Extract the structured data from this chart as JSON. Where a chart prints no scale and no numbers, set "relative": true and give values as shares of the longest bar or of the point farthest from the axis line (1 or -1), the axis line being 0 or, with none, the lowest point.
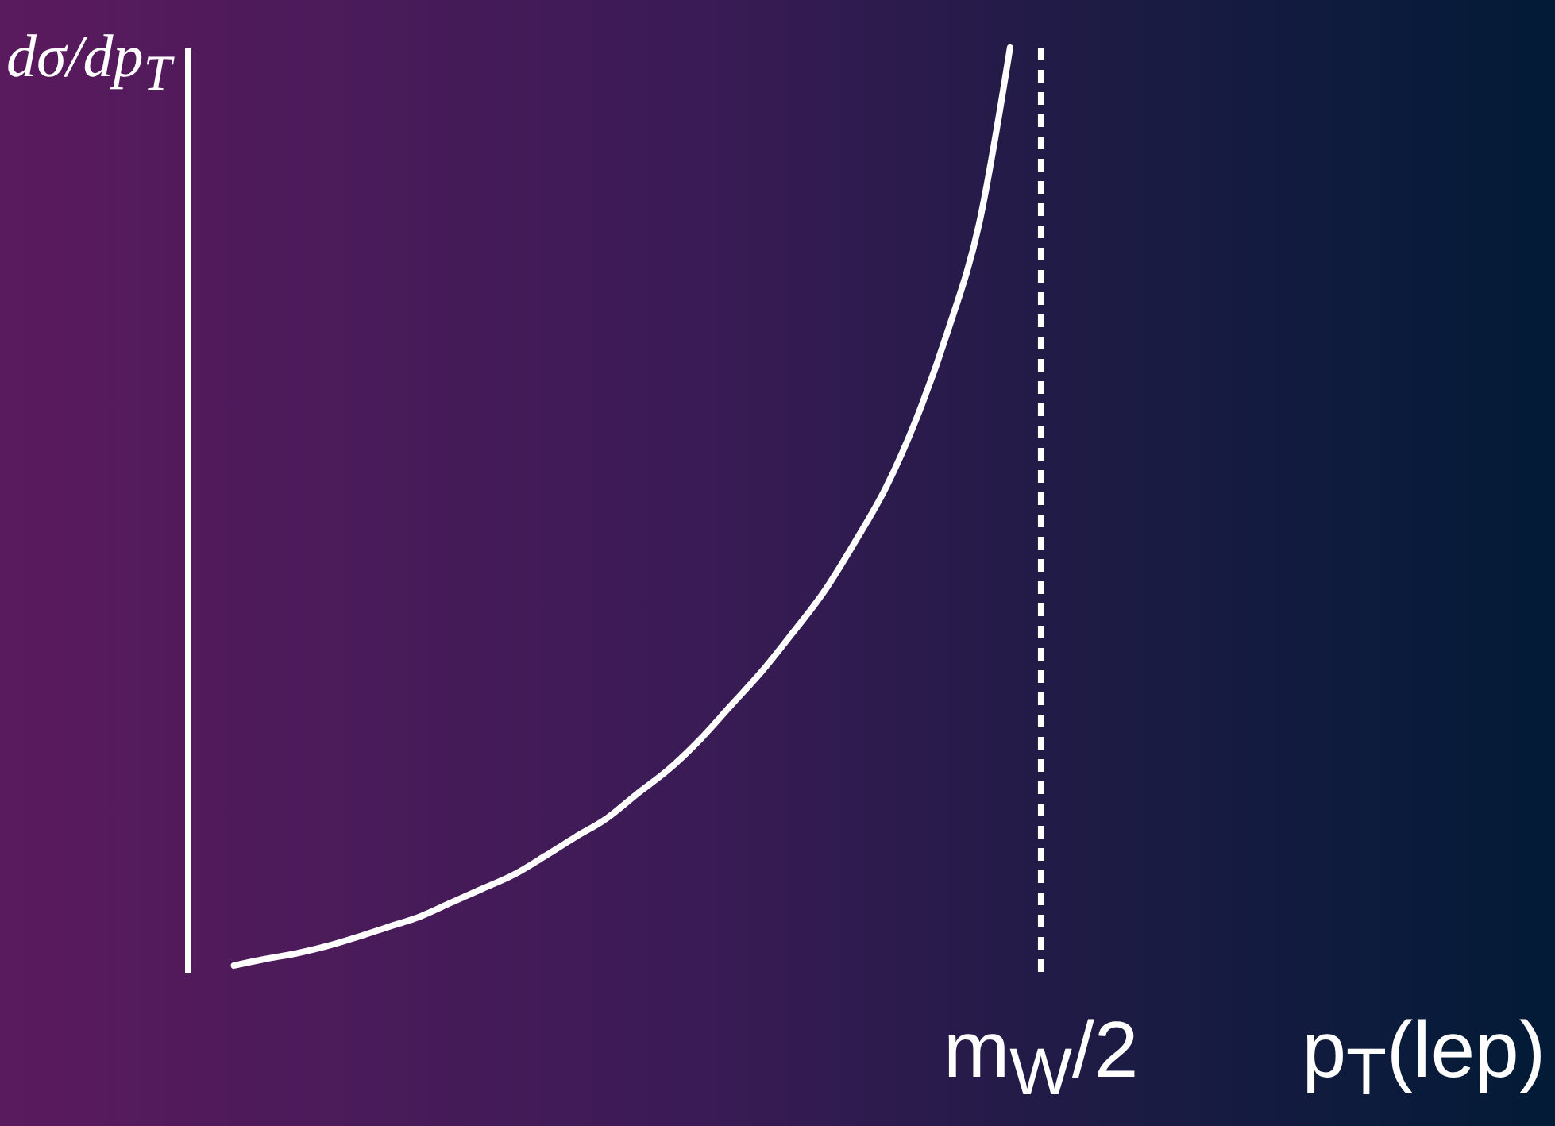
{
  "chart_data": {
    "type": "line",
    "relative": true,
    "xlabel": "p$_{T}$(lep)",
    "ylabel": "dσ/dp$_{T}$",
    "tick_labels": false,
    "categories": [
      null,
      null,
      null,
      null,
      null,
      null,
      null,
      null,
      null,
      null,
      null,
      null,
      null,
      null,
      null,
      null,
      null,
      null,
      null,
      null,
      null,
      null,
      null,
      null,
      null,
      null,
      null,
      null,
      null,
      null,
      null,
      null,
      null,
      null,
      null,
      null,
      null,
      null,
      null
    ],
    "series": [
      {
        "color": "#ffffff",
        "values": [
          0.007,
          0.014,
          0.02,
          0.028,
          0.038,
          0.049,
          0.06,
          0.075,
          0.09,
          0.105,
          0.125,
          0.146,
          0.166,
          0.193,
          0.219,
          0.251,
          0.288,
          0.325,
          0.367,
          0.411,
          0.465,
          0.524,
          0.6,
          0.694,
          0.809,
          1,
          null,
          null,
          null,
          null,
          null,
          null,
          null,
          null,
          null,
          null,
          null,
          null,
          null
        ]
      }
    ],
    "annotations": [
      "m$_{W}$/2"
    ]
  }
}
